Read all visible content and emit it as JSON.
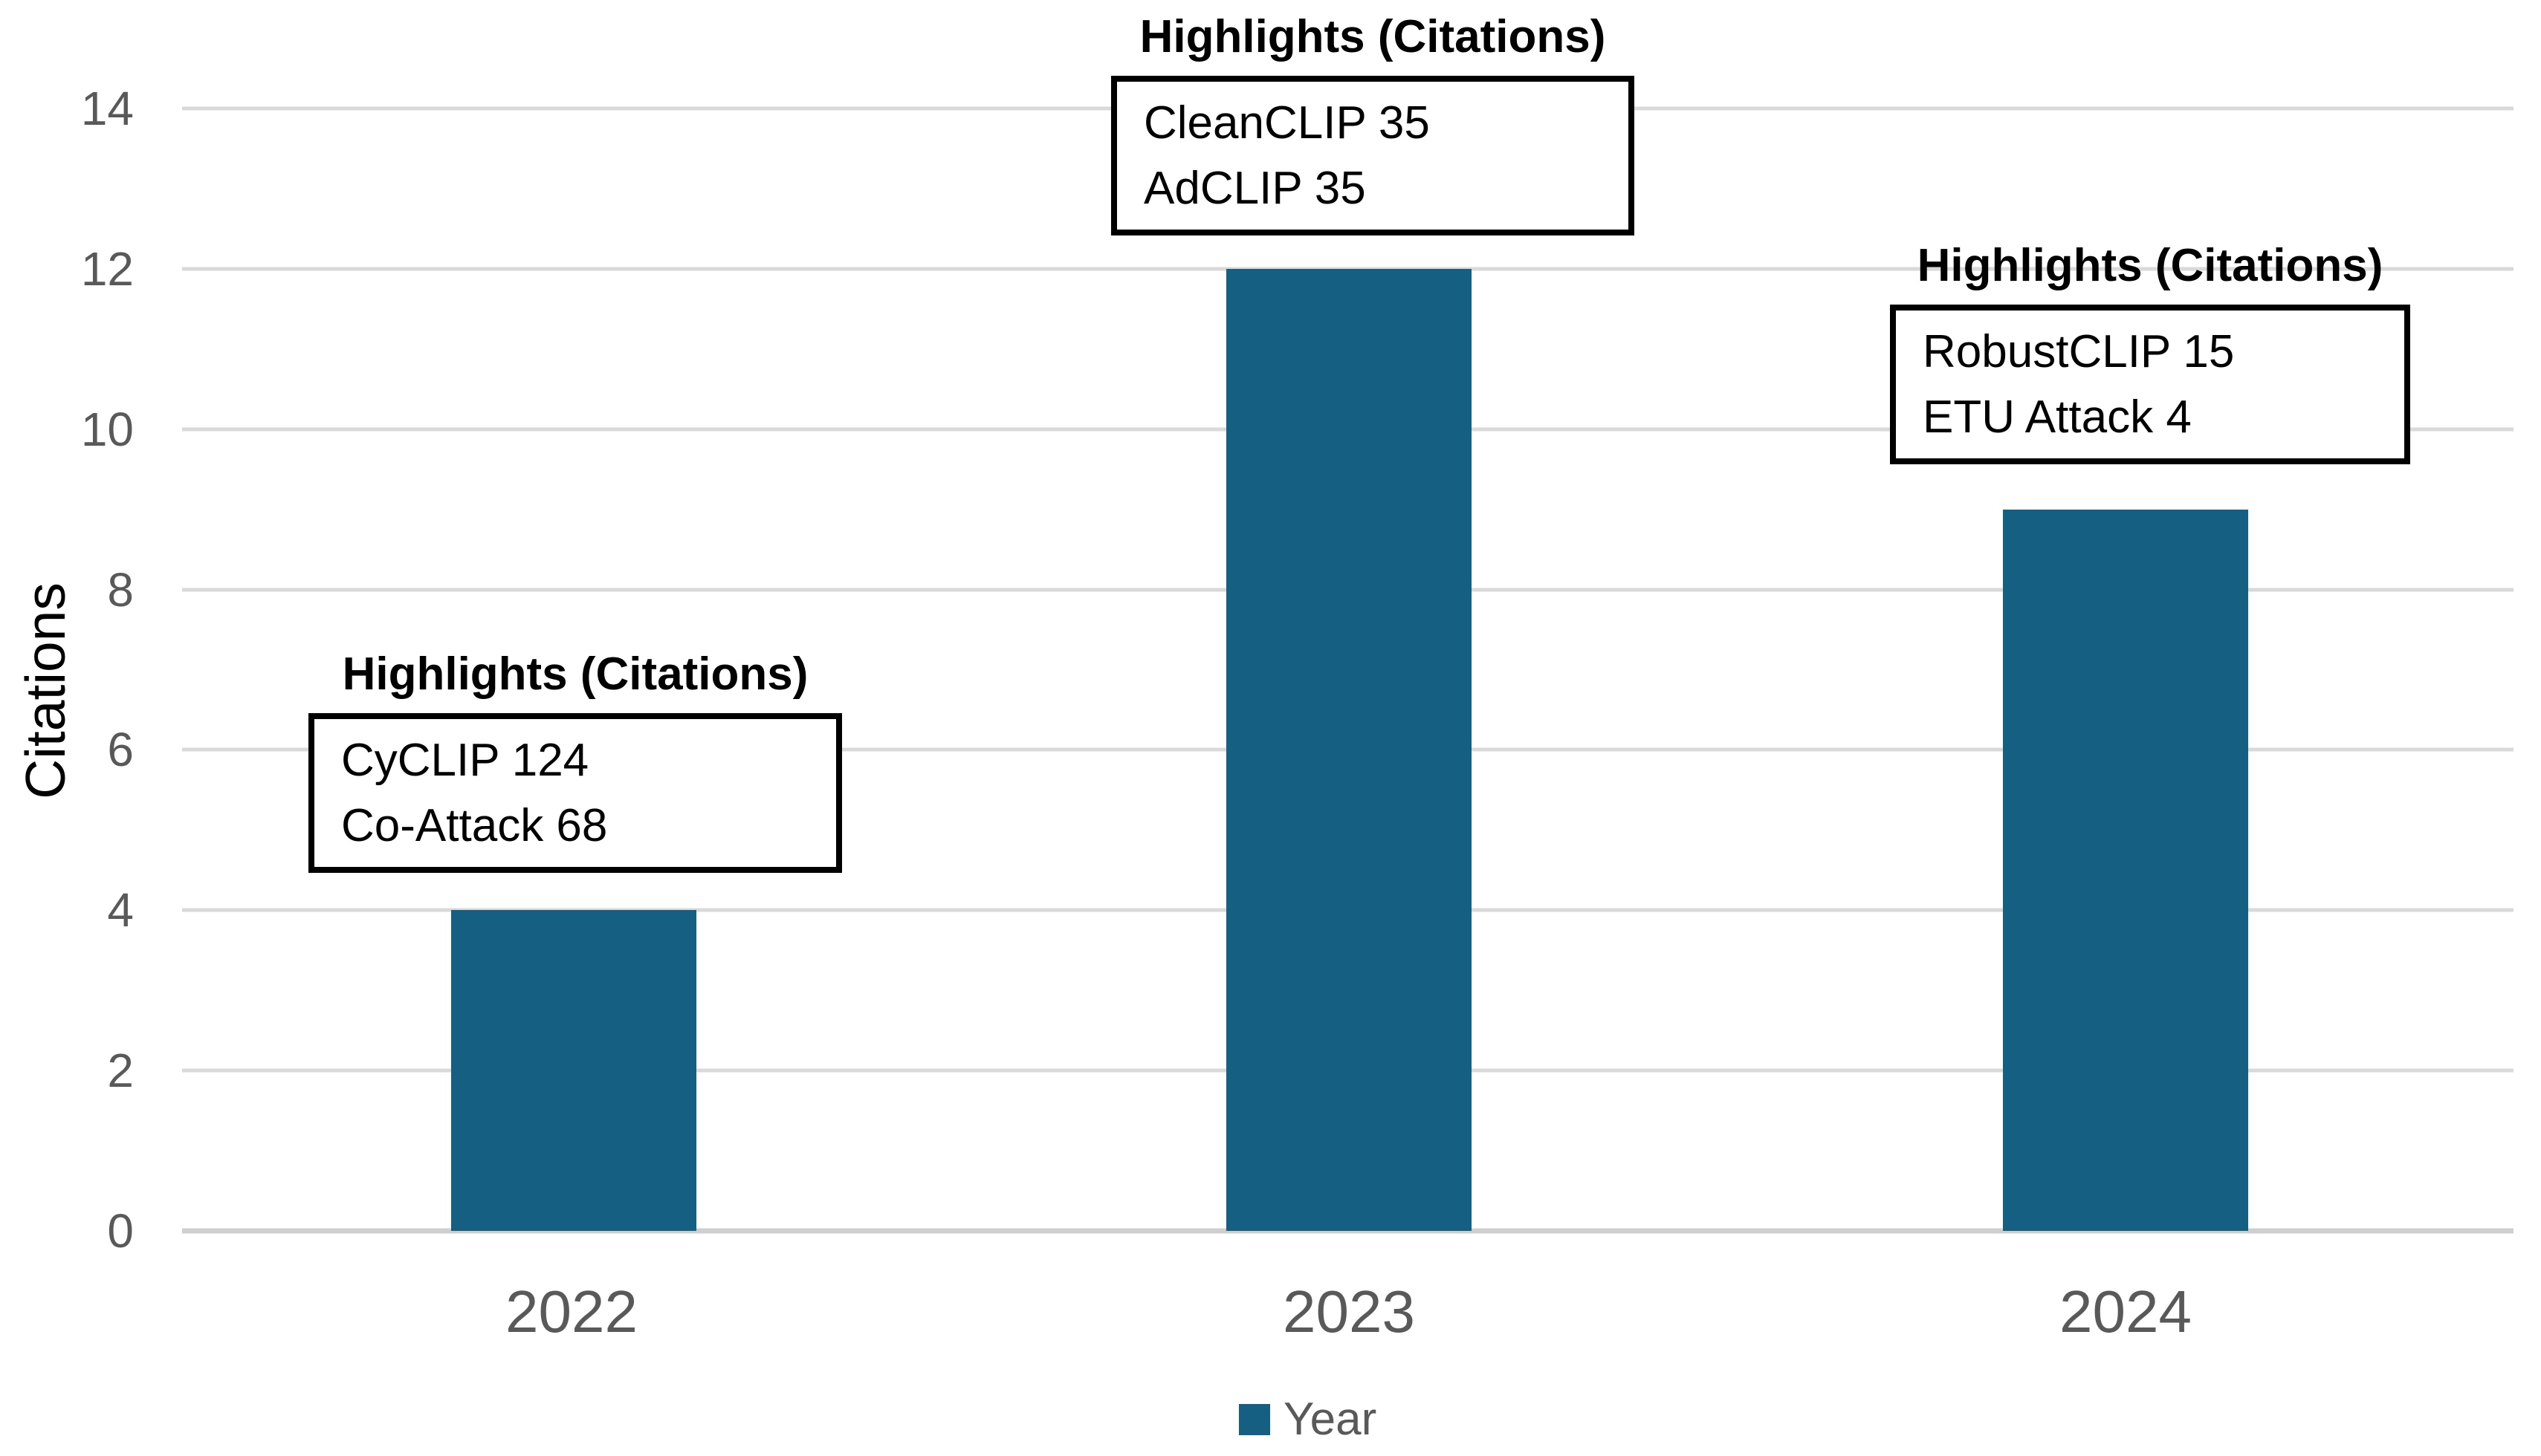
{
  "chart_data": {
    "type": "bar",
    "title": "",
    "categories": [
      "2022",
      "2023",
      "2024"
    ],
    "series": [
      {
        "name": "Year",
        "values": [
          4,
          12,
          9
        ]
      }
    ],
    "xlabel": "",
    "ylabel": "Citations",
    "ylim": [
      0,
      14
    ],
    "yticks": [
      0,
      2,
      4,
      6,
      8,
      10,
      12,
      14
    ],
    "grid": true,
    "legend_position": "bottom",
    "bar_color": "#156082",
    "gridline_color": "#d9d9d9",
    "axis_text_color": "#595959",
    "annotations": [
      {
        "category": "2022",
        "title": "Highlights (Citations)",
        "lines": [
          "CyCLIP 124",
          "Co-Attack 68"
        ]
      },
      {
        "category": "2023",
        "title": "Highlights (Citations)",
        "lines": [
          "CleanCLIP 35",
          "AdCLIP 35"
        ]
      },
      {
        "category": "2024",
        "title": "Highlights (Citations)",
        "lines": [
          "RobustCLIP 15",
          "ETU Attack 4"
        ]
      }
    ]
  }
}
